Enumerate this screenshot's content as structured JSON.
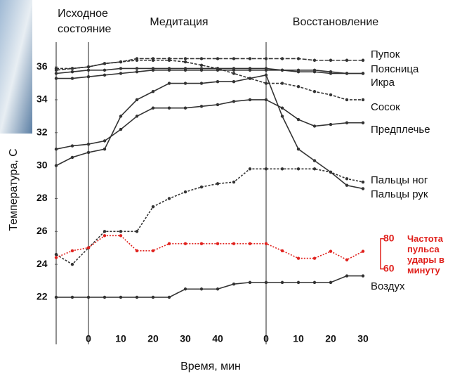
{
  "chart_data": {
    "type": "line",
    "ylabel": "Температура, С",
    "xlabel": "Время, мин",
    "phases": [
      {
        "label": "Исходное состояние",
        "x": -10
      },
      {
        "label": "Медитация",
        "x": 0
      },
      {
        "label": "Восстановление",
        "x": 55
      }
    ],
    "x": [
      -10,
      -5,
      0,
      5,
      10,
      15,
      20,
      25,
      30,
      35,
      40,
      45,
      50,
      55,
      60,
      65,
      70,
      75,
      80,
      85
    ],
    "xlim": [
      -10,
      85
    ],
    "xticks": [
      0,
      10,
      20,
      30,
      40,
      {
        "value": 55,
        "label": "0"
      },
      {
        "value": 65,
        "label": "10"
      },
      {
        "value": 75,
        "label": "20"
      },
      {
        "value": 85,
        "label": "30"
      }
    ],
    "ylim": [
      19.5,
      37.5
    ],
    "yticks": [
      22,
      24,
      26,
      28,
      30,
      32,
      34,
      36
    ],
    "y2lim": [
      14,
      210
    ],
    "y2ticks": [
      60,
      80
    ],
    "series": [
      {
        "name": "Пупок",
        "color": "#333333",
        "values": [
          35.8,
          35.9,
          36.0,
          36.2,
          36.3,
          36.5,
          36.5,
          36.5,
          36.5,
          36.5,
          36.5,
          36.5,
          36.5,
          36.5,
          36.5,
          36.5,
          36.4,
          36.4,
          36.4,
          36.4
        ]
      },
      {
        "name": "Поясница",
        "color": "#333333",
        "values": [
          35.6,
          35.7,
          35.8,
          35.8,
          35.9,
          35.9,
          35.9,
          35.9,
          35.9,
          35.9,
          35.9,
          35.9,
          35.9,
          35.9,
          35.8,
          35.8,
          35.8,
          35.7,
          35.6,
          35.6
        ]
      },
      {
        "name": "Икра",
        "color": "#333333",
        "values": [
          35.3,
          35.3,
          35.4,
          35.5,
          35.6,
          35.7,
          35.8,
          35.8,
          35.8,
          35.8,
          35.8,
          35.8,
          35.8,
          35.8,
          35.8,
          35.7,
          35.7,
          35.6,
          35.6,
          35.6
        ]
      },
      {
        "name": "Сосок",
        "color": "#333333",
        "values": [
          35.9,
          35.9,
          36.0,
          36.2,
          36.3,
          36.4,
          36.4,
          36.4,
          36.3,
          36.1,
          35.9,
          35.6,
          35.3,
          35.0,
          35.0,
          34.8,
          34.5,
          34.3,
          34.0,
          34.0
        ]
      },
      {
        "name": "Предплечье",
        "color": "#333333",
        "values": [
          31.0,
          31.2,
          31.3,
          31.5,
          32.2,
          33.0,
          33.5,
          33.5,
          33.5,
          33.6,
          33.7,
          33.9,
          34.0,
          34.0,
          33.5,
          32.8,
          32.4,
          32.5,
          32.6,
          32.6
        ]
      },
      {
        "name": "Пальцы ног",
        "color": "#333333",
        "values": [
          24.6,
          24.0,
          25.0,
          26.0,
          26.0,
          26.0,
          27.5,
          28.0,
          28.4,
          28.7,
          28.9,
          29.0,
          29.8,
          29.8,
          29.8,
          29.8,
          29.8,
          29.6,
          29.2,
          29.0
        ]
      },
      {
        "name": "Пальцы рук",
        "color": "#333333",
        "values": [
          30.0,
          30.5,
          30.8,
          31.0,
          33.0,
          34.0,
          34.5,
          35.0,
          35.0,
          35.0,
          35.1,
          35.1,
          35.3,
          35.5,
          33.0,
          31.0,
          30.3,
          29.6,
          28.8,
          28.6
        ]
      },
      {
        "name": "Воздух",
        "color": "#333333",
        "values": [
          22.0,
          22.0,
          22.0,
          22.0,
          22.0,
          22.0,
          22.0,
          22.0,
          22.5,
          22.5,
          22.5,
          22.8,
          22.9,
          22.9,
          22.9,
          22.9,
          22.9,
          22.9,
          23.3,
          23.3
        ]
      },
      {
        "name": "Частота пульса удары в минуту",
        "color": "#e0201c",
        "axis": "y2",
        "values": [
          67.5,
          72,
          74,
          82,
          82,
          72,
          72,
          76.7,
          76.7,
          76.7,
          76.7,
          76.7,
          76.7,
          76.7,
          72,
          67,
          67,
          71.6,
          66,
          71.6
        ]
      }
    ]
  }
}
